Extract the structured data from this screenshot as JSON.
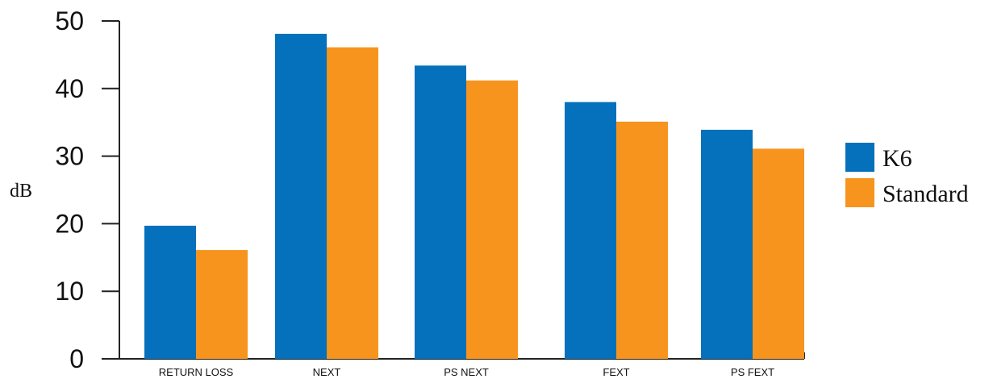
{
  "chart_data": {
    "type": "bar",
    "categories": [
      "RETURN LOSS",
      "NEXT",
      "PS NEXT",
      "FEXT",
      "PS FEXT"
    ],
    "series": [
      {
        "name": "K6",
        "color": "#0570bb",
        "values": [
          19.7,
          48.1,
          43.4,
          38.0,
          33.9
        ]
      },
      {
        "name": "Standard",
        "color": "#f7941d",
        "values": [
          16.1,
          46.1,
          41.2,
          35.1,
          31.1
        ]
      }
    ],
    "ylabel": "dB",
    "xlabel": "",
    "ylim": [
      0,
      50
    ],
    "yticks": [
      0,
      10,
      20,
      30,
      40,
      50
    ],
    "grid": false,
    "legend_position": "right"
  }
}
